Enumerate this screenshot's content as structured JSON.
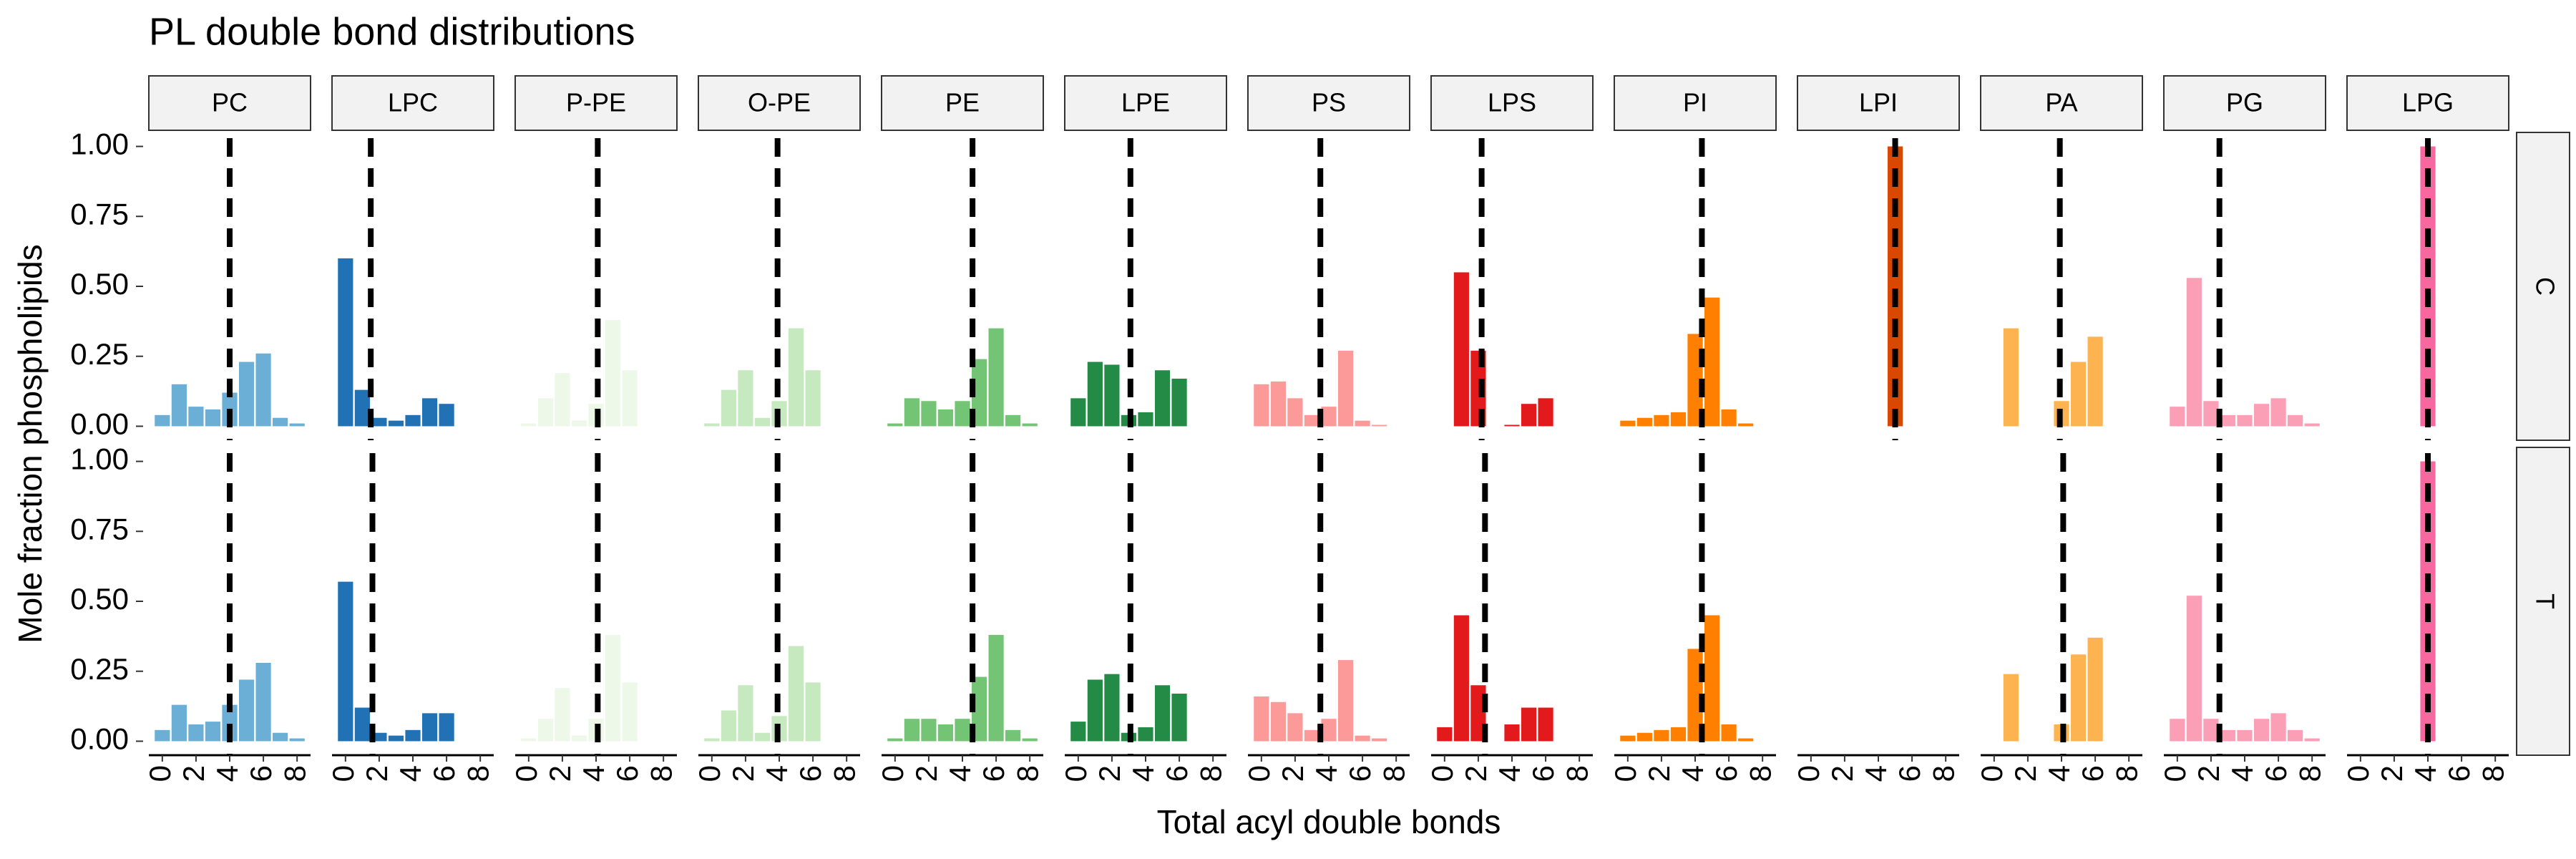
{
  "chart_data": {
    "type": "bar",
    "title": "PL double bond distributions",
    "x_label": "Total acyl double bonds",
    "y_label": "Mole fraction phospholipids",
    "rows": [
      "C",
      "T"
    ],
    "x": [
      0,
      1,
      2,
      3,
      4,
      5,
      6,
      7,
      8
    ],
    "xlim": [
      -0.8,
      8.8
    ],
    "xticks": [
      0,
      2,
      4,
      6,
      8
    ],
    "ylim": [
      -0.05,
      1.05
    ],
    "yticks": [
      {
        "value": 0,
        "label": "0.00"
      },
      {
        "value": 0.25,
        "label": "0.25"
      },
      {
        "value": 0.5,
        "label": "0.50"
      },
      {
        "value": 0.75,
        "label": "0.75"
      },
      {
        "value": 1,
        "label": "1.00"
      }
    ],
    "series": [
      {
        "name": "PC",
        "color": "#6baed6",
        "panels": [
          {
            "values": [
              0.04,
              0.15,
              0.07,
              0.06,
              0.12,
              0.23,
              0.26,
              0.03,
              0.01
            ],
            "mean": 4.0
          },
          {
            "values": [
              0.04,
              0.13,
              0.06,
              0.07,
              0.13,
              0.22,
              0.28,
              0.03,
              0.01
            ],
            "mean": 4.0
          }
        ]
      },
      {
        "name": "LPC",
        "color": "#2171b5",
        "panels": [
          {
            "values": [
              0.6,
              0.13,
              0.03,
              0.02,
              0.04,
              0.1,
              0.08,
              0,
              0
            ],
            "mean": 1.5
          },
          {
            "values": [
              0.57,
              0.12,
              0.03,
              0.02,
              0.04,
              0.1,
              0.1,
              0,
              0
            ],
            "mean": 1.6
          }
        ]
      },
      {
        "name": "P-PE",
        "color": "#edf8e9",
        "panels": [
          {
            "values": [
              0.01,
              0.1,
              0.19,
              0.02,
              0.08,
              0.38,
              0.2,
              0,
              0
            ],
            "mean": 4.1
          },
          {
            "values": [
              0.01,
              0.08,
              0.19,
              0.02,
              0.08,
              0.38,
              0.21,
              0,
              0
            ],
            "mean": 4.1
          }
        ]
      },
      {
        "name": "O-PE",
        "color": "#c7e9c0",
        "panels": [
          {
            "values": [
              0.01,
              0.13,
              0.2,
              0.03,
              0.09,
              0.35,
              0.2,
              0,
              0
            ],
            "mean": 3.9
          },
          {
            "values": [
              0.01,
              0.11,
              0.2,
              0.03,
              0.09,
              0.34,
              0.21,
              0,
              0
            ],
            "mean": 3.9
          }
        ]
      },
      {
        "name": "PE",
        "color": "#74c476",
        "panels": [
          {
            "values": [
              0.01,
              0.1,
              0.09,
              0.06,
              0.09,
              0.24,
              0.35,
              0.04,
              0.01
            ],
            "mean": 4.6
          },
          {
            "values": [
              0.01,
              0.08,
              0.08,
              0.06,
              0.08,
              0.23,
              0.38,
              0.04,
              0.01
            ],
            "mean": 4.6
          }
        ]
      },
      {
        "name": "LPE",
        "color": "#238b45",
        "panels": [
          {
            "values": [
              0.1,
              0.23,
              0.22,
              0.04,
              0.05,
              0.2,
              0.17,
              0,
              0
            ],
            "mean": 3.1
          },
          {
            "values": [
              0.07,
              0.22,
              0.24,
              0.03,
              0.05,
              0.2,
              0.17,
              0,
              0
            ],
            "mean": 3.1
          }
        ]
      },
      {
        "name": "PS",
        "color": "#fb9a99",
        "panels": [
          {
            "values": [
              0.15,
              0.16,
              0.1,
              0.04,
              0.07,
              0.27,
              0.02,
              0.005,
              0
            ],
            "mean": 3.5
          },
          {
            "values": [
              0.16,
              0.14,
              0.1,
              0.04,
              0.08,
              0.29,
              0.02,
              0.01,
              0
            ],
            "mean": 3.5
          }
        ]
      },
      {
        "name": "LPS",
        "color": "#e31a1c",
        "panels": [
          {
            "values": [
              0,
              0.55,
              0.27,
              0,
              0.005,
              0.08,
              0.1,
              0,
              0
            ],
            "mean": 2.2
          },
          {
            "values": [
              0.05,
              0.45,
              0.2,
              0,
              0.06,
              0.12,
              0.12,
              0,
              0
            ],
            "mean": 2.4
          }
        ]
      },
      {
        "name": "PI",
        "color": "#ff7f00",
        "panels": [
          {
            "values": [
              0.02,
              0.03,
              0.04,
              0.05,
              0.33,
              0.46,
              0.06,
              0.01,
              0
            ],
            "mean": 4.4
          },
          {
            "values": [
              0.02,
              0.03,
              0.04,
              0.05,
              0.33,
              0.45,
              0.06,
              0.01,
              0
            ],
            "mean": 4.4
          }
        ]
      },
      {
        "name": "LPI",
        "color": "#d94801",
        "panels": [
          {
            "values": [
              0,
              0,
              0,
              0,
              0,
              1.0,
              0,
              0,
              0
            ],
            "mean": 5.0
          },
          {
            "values": [
              0,
              0,
              0,
              0,
              0,
              0,
              0,
              0,
              0
            ],
            "mean": null
          }
        ]
      },
      {
        "name": "PA",
        "color": "#fdb350",
        "panels": [
          {
            "values": [
              0,
              0.35,
              0,
              0,
              0.09,
              0.23,
              0.32,
              0,
              0
            ],
            "mean": 3.9
          },
          {
            "values": [
              0,
              0.24,
              0,
              0,
              0.06,
              0.31,
              0.37,
              0,
              0
            ],
            "mean": 4.1
          }
        ]
      },
      {
        "name": "PG",
        "color": "#fa9fb5",
        "panels": [
          {
            "values": [
              0.07,
              0.53,
              0.09,
              0.04,
              0.04,
              0.08,
              0.1,
              0.04,
              0.01
            ],
            "mean": 2.5
          },
          {
            "values": [
              0.08,
              0.52,
              0.08,
              0.04,
              0.04,
              0.08,
              0.1,
              0.04,
              0.01
            ],
            "mean": 2.5
          }
        ]
      },
      {
        "name": "LPG",
        "color": "#f768a1",
        "panels": [
          {
            "values": [
              0,
              0,
              0,
              0,
              1.0,
              0,
              0,
              0,
              0
            ],
            "mean": 4.0
          },
          {
            "values": [
              0,
              0,
              0,
              0,
              1.0,
              0,
              0,
              0,
              0
            ],
            "mean": 4.0
          }
        ]
      }
    ]
  }
}
